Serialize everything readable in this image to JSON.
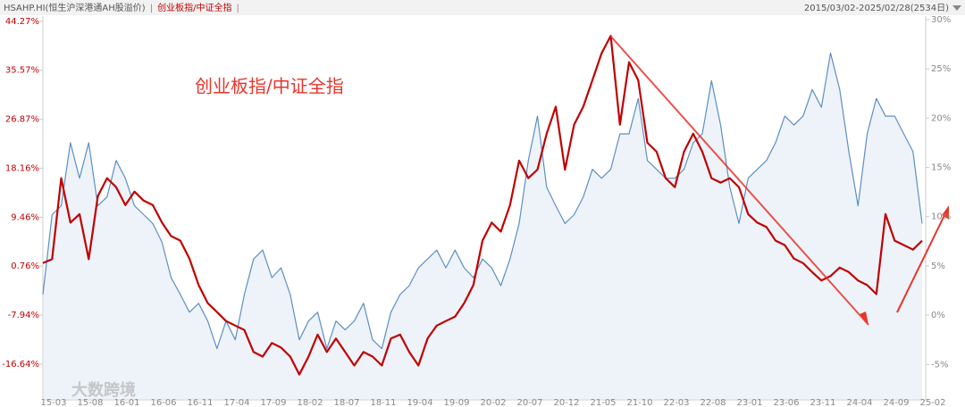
{
  "chart_data": {
    "type": "line",
    "date_range": "2015/03/02-2025/02/28(2534日)",
    "annotation": "创业板指/中证全指",
    "watermark": "大数跨境",
    "categories": [
      "15-03",
      null,
      null,
      null,
      "15-08",
      null,
      null,
      null,
      "16-01",
      null,
      null,
      null,
      "16-06",
      null,
      null,
      null,
      "16-11",
      null,
      null,
      null,
      "17-04",
      null,
      null,
      null,
      "17-09",
      null,
      null,
      null,
      "18-02",
      null,
      null,
      null,
      "18-07",
      null,
      null,
      null,
      "18-11",
      null,
      null,
      null,
      "19-04",
      null,
      null,
      null,
      "19-09",
      null,
      null,
      null,
      "20-02",
      null,
      null,
      null,
      "20-07",
      null,
      null,
      null,
      "20-12",
      null,
      null,
      null,
      "21-05",
      null,
      null,
      null,
      "21-10",
      null,
      null,
      null,
      "22-03",
      null,
      null,
      null,
      "22-08",
      null,
      null,
      null,
      "23-01",
      null,
      null,
      null,
      "23-06",
      null,
      null,
      null,
      "23-11",
      null,
      null,
      null,
      "24-04",
      null,
      null,
      null,
      "24-09",
      null,
      null,
      null,
      "25-02"
    ],
    "series": [
      {
        "name": "HSAHP.HI(恒生沪深港通AH股溢价)",
        "color": "#5b8fc4",
        "axis": "y2",
        "values": [
          2.1,
          10.2,
          11.1,
          17.5,
          13.9,
          17.5,
          11.1,
          12,
          15.7,
          13.9,
          11.1,
          10.2,
          9.3,
          7.4,
          3.8,
          2.1,
          0.3,
          1.2,
          -0.6,
          -3.4,
          -0.6,
          -2.5,
          2.1,
          5.7,
          6.6,
          3.8,
          4.8,
          2.1,
          -2.5,
          -0.6,
          0.3,
          -3.4,
          -0.6,
          -1.5,
          -0.6,
          1.2,
          -2.5,
          -3.4,
          0.3,
          2.1,
          3,
          4.8,
          5.7,
          6.6,
          4.8,
          6.6,
          4.8,
          3.8,
          5.7,
          4.8,
          3,
          5.7,
          9.3,
          15.7,
          20.2,
          13,
          11.1,
          9.3,
          10.2,
          12,
          14.8,
          13.9,
          14.8,
          18.4,
          18.4,
          22,
          15.7,
          14.8,
          13.9,
          13.9,
          14.8,
          17.5,
          18.4,
          23.8,
          19.3,
          13,
          9.3,
          13.9,
          14.8,
          15.7,
          17.5,
          20.2,
          19.3,
          20.2,
          22.9,
          21.1,
          26.6,
          22.9,
          16.6,
          11.1,
          18.4,
          22,
          20.2,
          20.2,
          18.4,
          16.6,
          9.3
        ]
      },
      {
        "name": "创业板指/中证全指",
        "color": "#c00000",
        "values": [
          1.3,
          2,
          16.4,
          8.5,
          10,
          2,
          13.2,
          16.4,
          14.8,
          11.6,
          14,
          12.4,
          11.6,
          8.5,
          6.1,
          5.3,
          2.1,
          -2.6,
          -5.8,
          -7.4,
          -9,
          -9.8,
          -10.6,
          -14.5,
          -15.3,
          -12.9,
          -13.7,
          -15.3,
          -18.5,
          -15.3,
          -11.4,
          -14.5,
          -12.1,
          -14.5,
          -16.9,
          -14.5,
          -15.3,
          -16.9,
          -12.1,
          -11.4,
          -14.5,
          -16.9,
          -12.1,
          -9.8,
          -9,
          -8.2,
          -5.8,
          -2.6,
          5.3,
          8.5,
          6.9,
          11.6,
          19.5,
          16.4,
          17.9,
          24.3,
          29.1,
          17.9,
          25.9,
          29.1,
          33.8,
          38.6,
          41.7,
          25.9,
          37,
          33.8,
          22.7,
          21.1,
          16.4,
          14.8,
          21.1,
          24.3,
          21.1,
          16.4,
          15.6,
          16.4,
          14.8,
          10,
          8.5,
          7.7,
          5.3,
          4.5,
          2.1,
          1.3,
          -0.3,
          -1.8,
          -1,
          0.5,
          -0.3,
          -1.8,
          -2.6,
          -4.2,
          10,
          5.3,
          4.5,
          3.7,
          5.3
        ]
      }
    ],
    "ylim": [
      -23,
      45.2
    ],
    "yticks": [
      {
        "value": 44.27,
        "label": "44.27%"
      },
      {
        "value": 35.57,
        "label": "35.57%"
      },
      {
        "value": 26.87,
        "label": "26.87%"
      },
      {
        "value": 18.16,
        "label": "18.16%"
      },
      {
        "value": 9.46,
        "label": "9.46%"
      },
      {
        "value": 0.76,
        "label": "0.76%"
      },
      {
        "value": -7.94,
        "label": "-7.94%"
      },
      {
        "value": -16.64,
        "label": "-16.64%"
      }
    ],
    "y2lim": [
      -8.6,
      30.36
    ],
    "y2ticks": [
      {
        "value": 30,
        "label": "30%"
      },
      {
        "value": 25,
        "label": "25%"
      },
      {
        "value": 20,
        "label": "20%"
      },
      {
        "value": 15,
        "label": "15%"
      },
      {
        "value": 10,
        "label": "10%"
      },
      {
        "value": 5,
        "label": "5%"
      },
      {
        "value": 0,
        "label": "0%"
      },
      {
        "value": -5,
        "label": "-5%"
      }
    ]
  }
}
